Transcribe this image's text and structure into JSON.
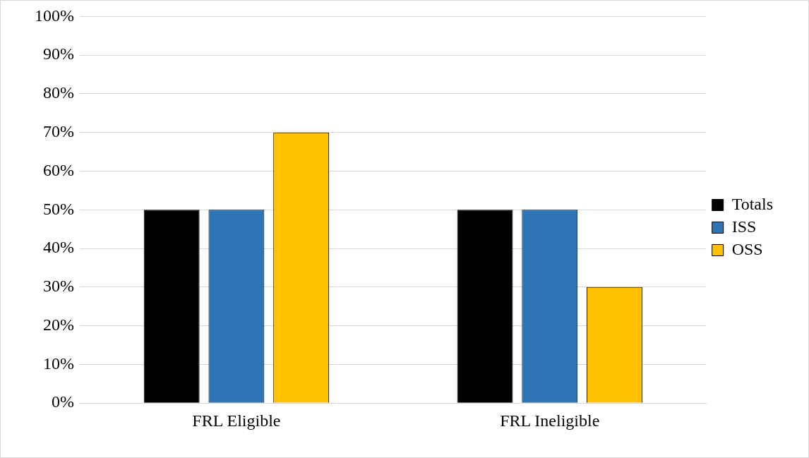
{
  "chart_data": {
    "type": "bar",
    "categories": [
      "FRL Eligible",
      "FRL Ineligible"
    ],
    "series": [
      {
        "name": "Totals",
        "color": "#000000",
        "values": [
          50,
          50
        ]
      },
      {
        "name": "ISS",
        "color": "#2e75b6",
        "values": [
          50,
          50
        ]
      },
      {
        "name": "OSS",
        "color": "#ffc000",
        "values": [
          70,
          30
        ]
      }
    ],
    "ylim": [
      0,
      100
    ],
    "yticks": [
      {
        "value": 0,
        "label": "0%"
      },
      {
        "value": 10,
        "label": "10%"
      },
      {
        "value": 20,
        "label": "20%"
      },
      {
        "value": 30,
        "label": "30%"
      },
      {
        "value": 40,
        "label": "40%"
      },
      {
        "value": 50,
        "label": "50%"
      },
      {
        "value": 60,
        "label": "60%"
      },
      {
        "value": 70,
        "label": "70%"
      },
      {
        "value": 80,
        "label": "80%"
      },
      {
        "value": 90,
        "label": "90%"
      },
      {
        "value": 100,
        "label": "100%"
      }
    ],
    "grid": "y",
    "legend": "right"
  }
}
